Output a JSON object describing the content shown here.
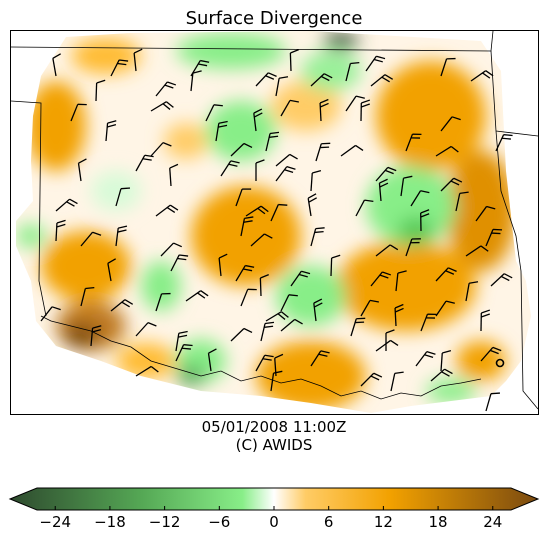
{
  "title": "Surface Divergence",
  "valid_time": "05/01/2008      11:00Z",
  "credit": "(C) AWIDS",
  "colorbar": {
    "ticks": [
      "−24",
      "−18",
      "−12",
      "−6",
      "0",
      "6",
      "12",
      "18",
      "24"
    ],
    "range": [
      -26,
      26
    ],
    "extend": "both",
    "colors": {
      "neg_strong": "#2e4a2e",
      "neg_mid": "#55a855",
      "neg_light": "#88ee88",
      "zero": "#ffffff",
      "pos_light": "#ffcc66",
      "pos_mid": "#f2a100",
      "pos_strong": "#7a4a10"
    }
  },
  "map": {
    "field": "surface divergence",
    "symbols": "wind barbs",
    "station_marker": "open circle"
  }
}
